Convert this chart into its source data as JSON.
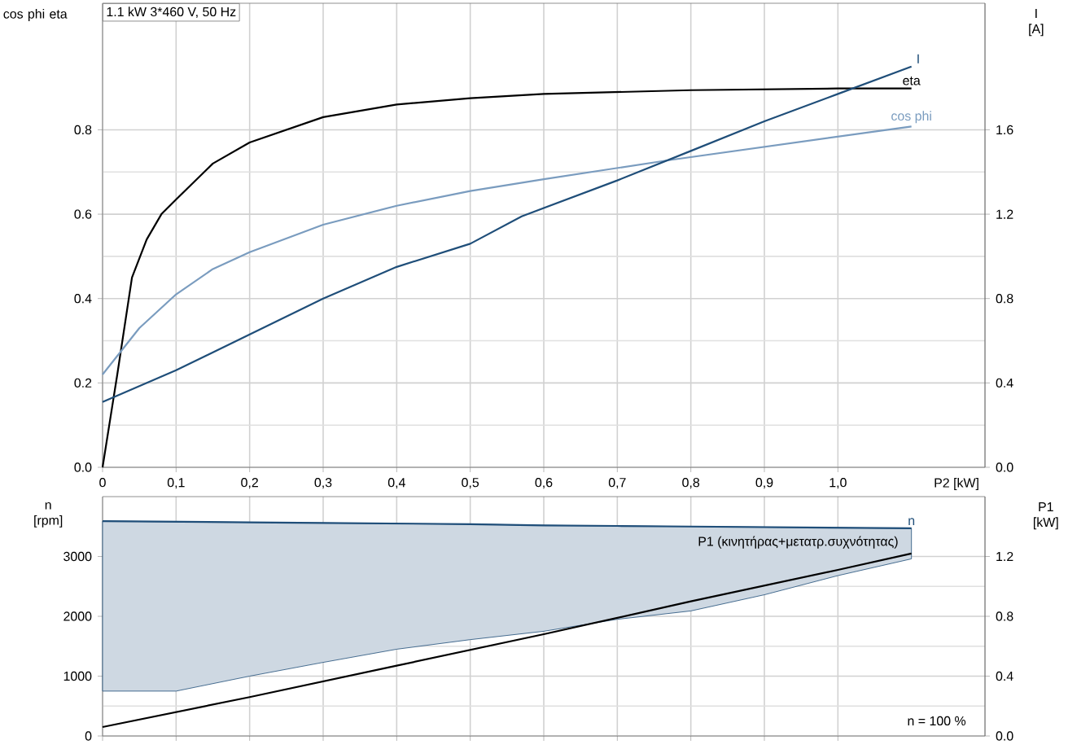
{
  "chart_data": [
    {
      "type": "line",
      "title": "1.1 kW  3*460 V, 50 Hz",
      "xlabel": "P2 [kW]",
      "ylabel": "cos phi eta",
      "y2label": "I [A]",
      "grid": true,
      "xlim": [
        0,
        1.2
      ],
      "xticks": [
        0,
        {
          "value": 0.1,
          "label": "0,1"
        },
        {
          "value": 0.2,
          "label": "0,2"
        },
        {
          "value": 0.3,
          "label": "0,3"
        },
        {
          "value": 0.4,
          "label": "0,4"
        },
        {
          "value": 0.5,
          "label": "0,5"
        },
        {
          "value": 0.6,
          "label": "0,6"
        },
        {
          "value": 0.7,
          "label": "0,7"
        },
        {
          "value": 0.8,
          "label": "0,8"
        },
        {
          "value": 0.9,
          "label": "0,9"
        },
        {
          "value": 1.0,
          "label": "1,0"
        }
      ],
      "ylim": [
        0,
        1.1
      ],
      "yticks": [
        {
          "value": 0,
          "label": "0.0"
        },
        0.2,
        0.4,
        0.6,
        0.8
      ],
      "y2lim": [
        0,
        2.2
      ],
      "y2ticks": [
        {
          "value": 0,
          "label": "0.0"
        },
        0.4,
        0.8,
        1.2,
        1.6
      ],
      "series": [
        {
          "name": "eta",
          "color": "#000000",
          "x": [
            0,
            0.02,
            0.04,
            0.06,
            0.08,
            0.1,
            0.15,
            0.2,
            0.3,
            0.4,
            0.5,
            0.6,
            0.8,
            1.0,
            1.1
          ],
          "values": [
            0,
            0.22,
            0.45,
            0.54,
            0.6,
            0.635,
            0.72,
            0.77,
            0.83,
            0.86,
            0.875,
            0.885,
            0.894,
            0.898,
            0.898
          ]
        },
        {
          "name": "cos phi",
          "color": "#7a9cbf",
          "x": [
            0,
            0.05,
            0.1,
            0.15,
            0.2,
            0.3,
            0.4,
            0.5,
            0.6,
            0.77,
            1.1
          ],
          "values": [
            0.22,
            0.33,
            0.41,
            0.47,
            0.51,
            0.575,
            0.62,
            0.655,
            0.683,
            0.728,
            0.808
          ]
        },
        {
          "name": "I",
          "color": "#1f4e79",
          "axis": "y2",
          "x": [
            0,
            0.1,
            0.2,
            0.3,
            0.4,
            0.5,
            0.57,
            0.7,
            0.8,
            0.9,
            1.0,
            1.1
          ],
          "values": [
            0.31,
            0.46,
            0.63,
            0.8,
            0.95,
            1.06,
            1.19,
            1.36,
            1.5,
            1.64,
            1.77,
            1.9
          ]
        }
      ]
    },
    {
      "type": "line",
      "ylabel": "n [rpm]",
      "y2label": "P1 [kW]",
      "grid": true,
      "tick_labels": "y",
      "xlim": [
        0,
        1.2
      ],
      "xticks": [
        0,
        0.1,
        0.2,
        0.3,
        0.4,
        0.5,
        0.6,
        0.7,
        0.8,
        0.9,
        1.0
      ],
      "ylim": [
        0,
        4000
      ],
      "yticks": [
        0,
        1000,
        2000,
        3000
      ],
      "y2lim": [
        0,
        1.6
      ],
      "y2ticks": [
        {
          "value": 0,
          "label": "0.0"
        },
        0.4,
        0.8,
        1.2
      ],
      "annotations": [
        "n = 100 %"
      ],
      "series": [
        {
          "name": "n",
          "color": "#1f4e79",
          "x": [
            0,
            0.1,
            0.2,
            0.3,
            0.4,
            0.5,
            0.6,
            0.7,
            0.8,
            0.9,
            1.0,
            1.1
          ],
          "values": [
            3590,
            3580,
            3570,
            3560,
            3550,
            3540,
            3520,
            3510,
            3500,
            3490,
            3480,
            3470
          ],
          "lower": [
            750,
            750,
            1000,
            1230,
            1450,
            1610,
            1750,
            1950,
            2090,
            2360,
            2680,
            2960
          ],
          "upper": [
            3590,
            3580,
            3570,
            3560,
            3550,
            3540,
            3520,
            3510,
            3500,
            3490,
            3480,
            3470
          ]
        },
        {
          "name": "P1 (κινητήρας+μετατρ.συχνότητας)",
          "color": "#000000",
          "axis": "y2",
          "x": [
            0,
            0.2,
            0.4,
            0.6,
            0.8,
            1.0,
            1.1
          ],
          "values": [
            0.06,
            0.26,
            0.47,
            0.68,
            0.9,
            1.11,
            1.22
          ]
        }
      ]
    }
  ]
}
